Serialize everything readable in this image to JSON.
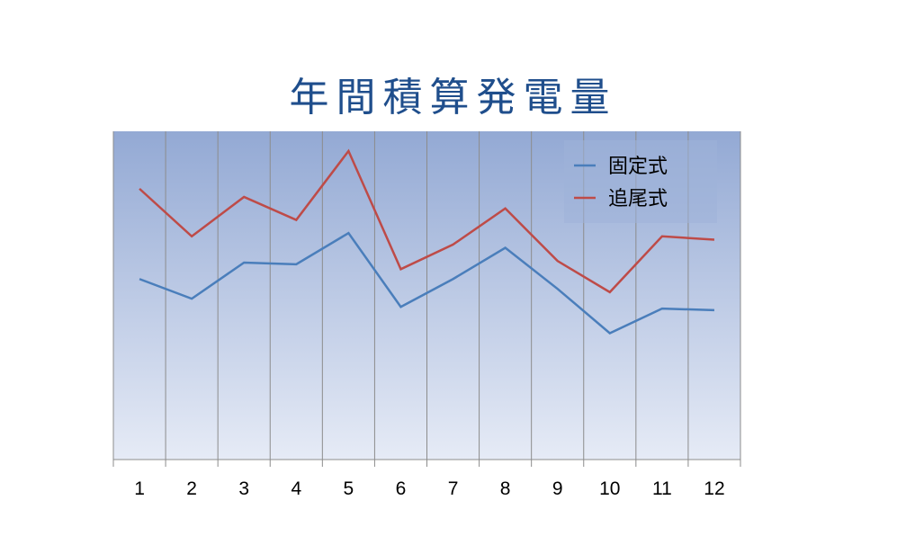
{
  "chart_data": {
    "type": "line",
    "title": "年間積算発電量",
    "categories": [
      "1",
      "2",
      "3",
      "4",
      "5",
      "6",
      "7",
      "8",
      "9",
      "10",
      "11",
      "12"
    ],
    "ylim": [
      0,
      100
    ],
    "series": [
      {
        "name": "固定式",
        "color": "#4a7ebb",
        "values": [
          55,
          49,
          60,
          59.5,
          69,
          46.5,
          55,
          64.5,
          52,
          38.5,
          46,
          45.5
        ]
      },
      {
        "name": "追尾式",
        "color": "#be4b48",
        "values": [
          82.5,
          68,
          80,
          73,
          94,
          58,
          65.5,
          76.5,
          60.5,
          51,
          68,
          67
        ]
      }
    ],
    "grid": "vertical",
    "legend": "top-right",
    "background": "gradient-blue"
  }
}
